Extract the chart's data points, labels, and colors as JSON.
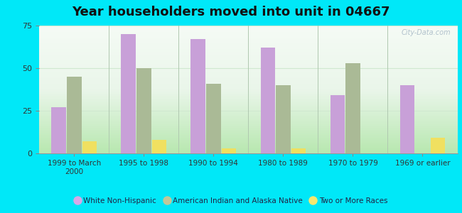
{
  "title": "Year householders moved into unit in 04667",
  "categories": [
    "1999 to March\n2000",
    "1995 to 1998",
    "1990 to 1994",
    "1980 to 1989",
    "1970 to 1979",
    "1969 or earlier"
  ],
  "series": {
    "White Non-Hispanic": [
      27,
      70,
      67,
      62,
      34,
      40
    ],
    "American Indian and Alaska Native": [
      45,
      50,
      41,
      40,
      53,
      0
    ],
    "Two or More Races": [
      7,
      8,
      3,
      3,
      0,
      9
    ]
  },
  "colors": {
    "White Non-Hispanic": "#c8a0d8",
    "American Indian and Alaska Native": "#aaba96",
    "Two or More Races": "#f0e060"
  },
  "legend_colors": {
    "White Non-Hispanic": "#d8a8e8",
    "American Indian and Alaska Native": "#c0c89a",
    "Two or More Races": "#f5e870"
  },
  "ylim": [
    0,
    75
  ],
  "yticks": [
    0,
    25,
    50,
    75
  ],
  "background_outer": "#00e8f8",
  "background_inner_grad_start": "#c8e8c0",
  "background_inner_grad_end": "#f0f8f0",
  "grid_color": "#e0ece0",
  "title_fontsize": 13,
  "bar_width": 0.22
}
